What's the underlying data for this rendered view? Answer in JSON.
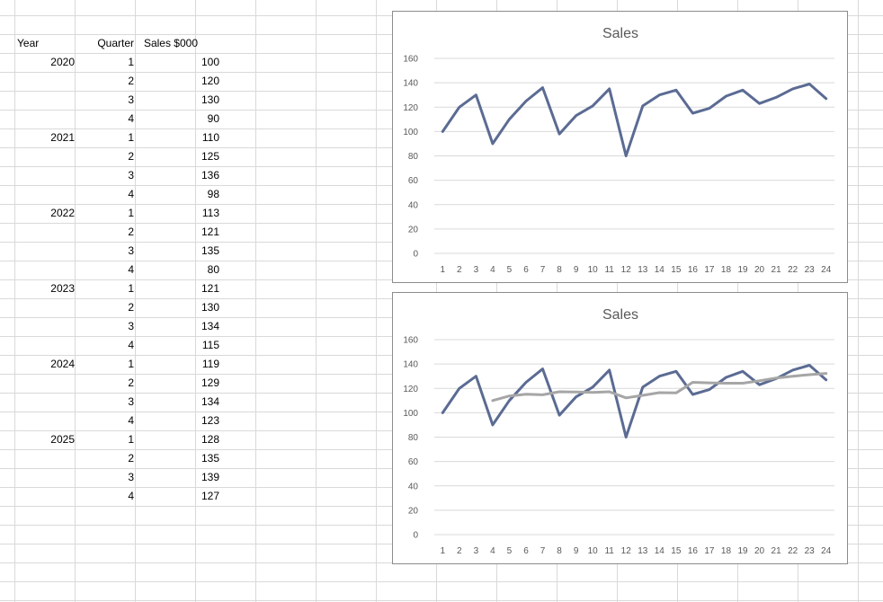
{
  "sheet": {
    "headers": {
      "year": "Year",
      "quarter": "Quarter",
      "sales": "Sales $000"
    },
    "rows": [
      {
        "year": "2020",
        "quarter": "1",
        "sales": "100"
      },
      {
        "year": "",
        "quarter": "2",
        "sales": "120"
      },
      {
        "year": "",
        "quarter": "3",
        "sales": "130"
      },
      {
        "year": "",
        "quarter": "4",
        "sales": "90"
      },
      {
        "year": "2021",
        "quarter": "1",
        "sales": "110"
      },
      {
        "year": "",
        "quarter": "2",
        "sales": "125"
      },
      {
        "year": "",
        "quarter": "3",
        "sales": "136"
      },
      {
        "year": "",
        "quarter": "4",
        "sales": "98"
      },
      {
        "year": "2022",
        "quarter": "1",
        "sales": "113"
      },
      {
        "year": "",
        "quarter": "2",
        "sales": "121"
      },
      {
        "year": "",
        "quarter": "3",
        "sales": "135"
      },
      {
        "year": "",
        "quarter": "4",
        "sales": "80"
      },
      {
        "year": "2023",
        "quarter": "1",
        "sales": "121"
      },
      {
        "year": "",
        "quarter": "2",
        "sales": "130"
      },
      {
        "year": "",
        "quarter": "3",
        "sales": "134"
      },
      {
        "year": "",
        "quarter": "4",
        "sales": "115"
      },
      {
        "year": "2024",
        "quarter": "1",
        "sales": "119"
      },
      {
        "year": "",
        "quarter": "2",
        "sales": "129"
      },
      {
        "year": "",
        "quarter": "3",
        "sales": "134"
      },
      {
        "year": "",
        "quarter": "4",
        "sales": "123"
      },
      {
        "year": "2025",
        "quarter": "1",
        "sales": "128"
      },
      {
        "year": "",
        "quarter": "2",
        "sales": "135"
      },
      {
        "year": "",
        "quarter": "3",
        "sales": "139"
      },
      {
        "year": "",
        "quarter": "4",
        "sales": "127"
      }
    ]
  },
  "colors": {
    "sales_line": "#5b6b93",
    "moving_average_line": "#a6a6a6",
    "gridline": "#d9d9d9",
    "axis_text": "#595959"
  },
  "chart_data": [
    {
      "type": "line",
      "title": "Sales",
      "categories": [
        "1",
        "2",
        "3",
        "4",
        "5",
        "6",
        "7",
        "8",
        "9",
        "10",
        "11",
        "12",
        "13",
        "14",
        "15",
        "16",
        "17",
        "18",
        "19",
        "20",
        "21",
        "22",
        "23",
        "24"
      ],
      "series": [
        {
          "values": [
            100,
            120,
            130,
            90,
            110,
            125,
            136,
            98,
            113,
            121,
            135,
            80,
            121,
            130,
            134,
            115,
            119,
            129,
            134,
            123,
            128,
            135,
            139,
            127
          ]
        }
      ],
      "yticks": [
        "0",
        "20",
        "40",
        "60",
        "80",
        "100",
        "120",
        "140",
        "160"
      ],
      "ylim": [
        0,
        160
      ],
      "grid": true,
      "legend": "none"
    },
    {
      "type": "line",
      "title": "Sales",
      "categories": [
        "1",
        "2",
        "3",
        "4",
        "5",
        "6",
        "7",
        "8",
        "9",
        "10",
        "11",
        "12",
        "13",
        "14",
        "15",
        "16",
        "17",
        "18",
        "19",
        "20",
        "21",
        "22",
        "23",
        "24"
      ],
      "series": [
        {
          "values": [
            100,
            120,
            130,
            90,
            110,
            125,
            136,
            98,
            113,
            121,
            135,
            80,
            121,
            130,
            134,
            115,
            119,
            129,
            134,
            123,
            128,
            135,
            139,
            127
          ]
        },
        {
          "values": [
            null,
            null,
            null,
            110,
            113.75,
            115.25,
            114.75,
            117.25,
            117,
            116.75,
            117.25,
            112.25,
            114.25,
            116.5,
            116.25,
            125,
            124.5,
            124.25,
            124.25,
            126.25,
            128.5,
            130,
            131.25,
            132.25
          ]
        }
      ],
      "yticks": [
        "0",
        "20",
        "40",
        "60",
        "80",
        "100",
        "120",
        "140",
        "160"
      ],
      "ylim": [
        0,
        160
      ],
      "grid": true,
      "legend": "none"
    }
  ]
}
